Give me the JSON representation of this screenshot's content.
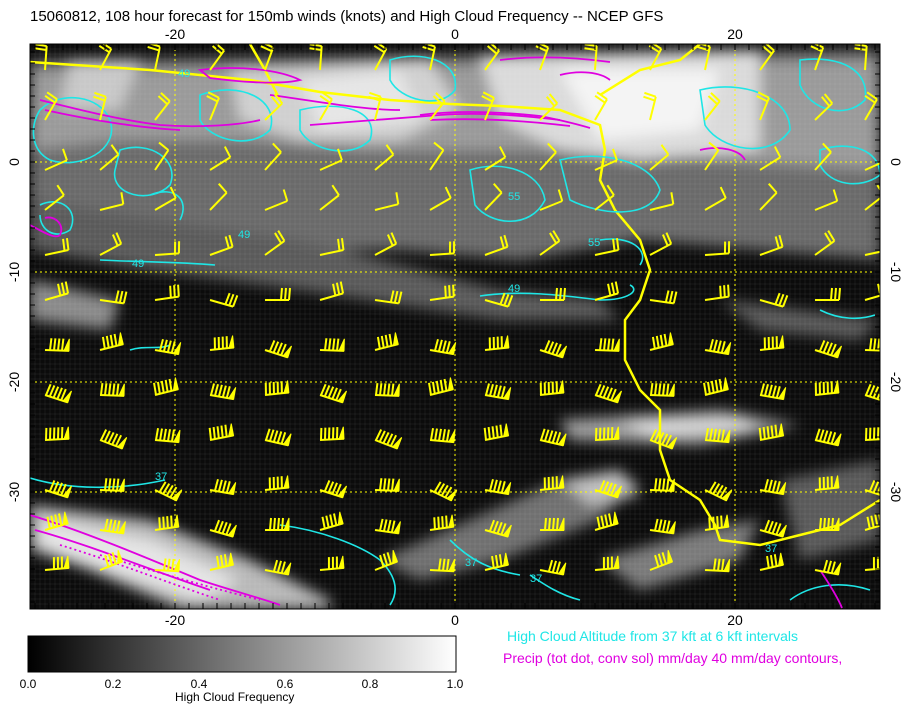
{
  "title": "15060812, 108 hour forecast for 150mb winds (knots) and High Cloud Frequency -- NCEP GFS",
  "axes": {
    "x_ticks": [
      "-20",
      "0",
      "20"
    ],
    "y_ticks": [
      "0",
      "-10",
      "-20",
      "-30"
    ]
  },
  "contour_labels": {
    "cyan": [
      "49",
      "55",
      "49",
      "49",
      "49",
      "37",
      "37",
      "37",
      "37",
      "55"
    ]
  },
  "legend": {
    "altitude": "High Cloud Altitude from 37 kft at 6 kft intervals",
    "precip": "Precip (tot dot, conv sol) mm/day 40 mm/day contours,"
  },
  "colorbar": {
    "title": "High Cloud Frequency",
    "ticks": [
      "0.0",
      "0.2",
      "0.4",
      "0.6",
      "0.8",
      "1.0"
    ]
  },
  "colors": {
    "wind_barbs": "#ffff00",
    "coastline": "#ffff00",
    "altitude_contours": "#1fe6e6",
    "precip_contours": "#e000e0",
    "grid": "#ffff00"
  }
}
